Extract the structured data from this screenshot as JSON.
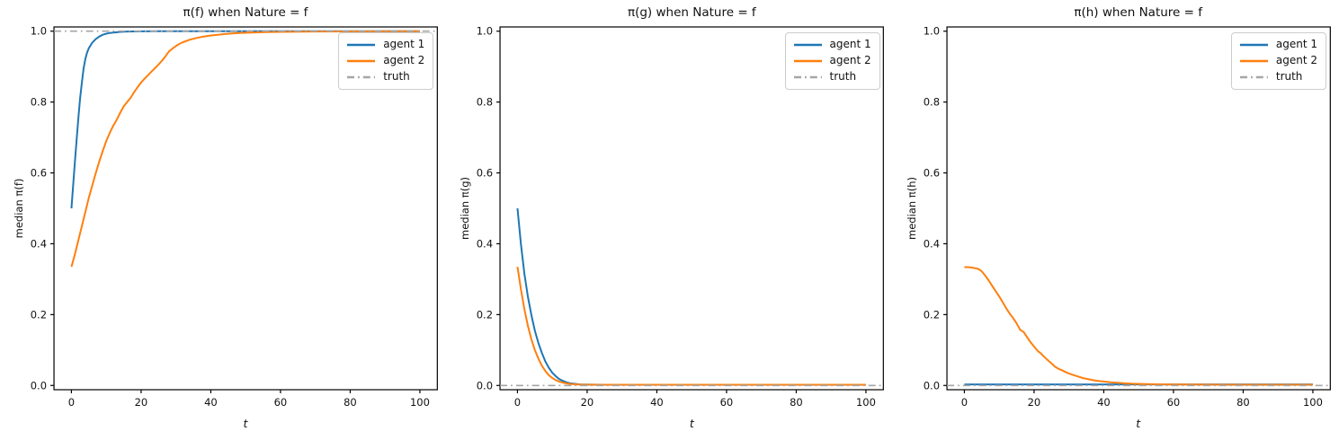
{
  "figure": {
    "background_color": "#ffffff",
    "text_color": "#111111",
    "axis_color": "#000000"
  },
  "chart_data": [
    {
      "type": "line",
      "title": "π(f) when Nature = f",
      "xlabel": "t",
      "ylabel": "median π(f)",
      "xlim": [
        -5,
        105
      ],
      "ylim": [
        -0.012,
        1.012
      ],
      "xticks": [
        "0",
        "20",
        "40",
        "60",
        "80",
        "100"
      ],
      "yticks": [
        "0.0",
        "0.2",
        "0.4",
        "0.6",
        "0.8",
        "1.0"
      ],
      "grid": false,
      "legend_position": "upper right",
      "legend_entries": [
        "agent 1",
        "agent 2",
        "truth"
      ],
      "series": [
        {
          "name": "agent 1",
          "color": "#1f77b4",
          "style": "solid",
          "width": 2,
          "points": [
            [
              0,
              0.5
            ],
            [
              0.5,
              0.565
            ],
            [
              1,
              0.63
            ],
            [
              1.5,
              0.695
            ],
            [
              2,
              0.755
            ],
            [
              2.5,
              0.81
            ],
            [
              3,
              0.855
            ],
            [
              3.5,
              0.895
            ],
            [
              4,
              0.922
            ],
            [
              4.5,
              0.94
            ],
            [
              5,
              0.952
            ],
            [
              6,
              0.968
            ],
            [
              7,
              0.978
            ],
            [
              8,
              0.985
            ],
            [
              9,
              0.99
            ],
            [
              10,
              0.993
            ],
            [
              11,
              0.995
            ],
            [
              12,
              0.996
            ],
            [
              14,
              0.998
            ],
            [
              16,
              0.999
            ],
            [
              20,
              0.9995
            ],
            [
              25,
              1.0
            ],
            [
              100,
              1.0
            ]
          ]
        },
        {
          "name": "agent 2",
          "color": "#ff7f0e",
          "style": "solid",
          "width": 2,
          "points": [
            [
              0,
              0.335
            ],
            [
              1,
              0.37
            ],
            [
              2,
              0.41
            ],
            [
              3,
              0.45
            ],
            [
              4,
              0.49
            ],
            [
              5,
              0.53
            ],
            [
              6,
              0.565
            ],
            [
              7,
              0.6
            ],
            [
              8,
              0.632
            ],
            [
              9,
              0.662
            ],
            [
              10,
              0.69
            ],
            [
              11,
              0.713
            ],
            [
              12,
              0.733
            ],
            [
              13,
              0.75
            ],
            [
              14,
              0.77
            ],
            [
              15,
              0.788
            ],
            [
              16,
              0.8
            ],
            [
              17,
              0.812
            ],
            [
              18,
              0.828
            ],
            [
              19,
              0.842
            ],
            [
              20,
              0.855
            ],
            [
              21,
              0.866
            ],
            [
              22,
              0.876
            ],
            [
              23,
              0.886
            ],
            [
              24,
              0.896
            ],
            [
              25,
              0.906
            ],
            [
              26,
              0.917
            ],
            [
              27,
              0.929
            ],
            [
              28,
              0.943
            ],
            [
              29,
              0.951
            ],
            [
              30,
              0.958
            ],
            [
              31,
              0.964
            ],
            [
              32,
              0.969
            ],
            [
              34,
              0.976
            ],
            [
              36,
              0.981
            ],
            [
              38,
              0.985
            ],
            [
              40,
              0.988
            ],
            [
              42,
              0.99
            ],
            [
              44,
              0.992
            ],
            [
              46,
              0.9935
            ],
            [
              48,
              0.995
            ],
            [
              52,
              0.996
            ],
            [
              56,
              0.9975
            ],
            [
              60,
              0.998
            ],
            [
              70,
              0.999
            ],
            [
              80,
              0.9995
            ],
            [
              100,
              1.0
            ]
          ]
        },
        {
          "name": "truth",
          "color": "#a6a6a6",
          "style": "dashdot",
          "width": 1.6,
          "dash": "8 4 1.8 4",
          "points": [
            [
              -5,
              1
            ],
            [
              105,
              1
            ]
          ]
        }
      ]
    },
    {
      "type": "line",
      "title": "π(g) when Nature = f",
      "xlabel": "t",
      "ylabel": "median π(g)",
      "xlim": [
        -5,
        105
      ],
      "ylim": [
        -0.012,
        1.012
      ],
      "xticks": [
        "0",
        "20",
        "40",
        "60",
        "80",
        "100"
      ],
      "yticks": [
        "0.0",
        "0.2",
        "0.4",
        "0.6",
        "0.8",
        "1.0"
      ],
      "grid": false,
      "legend_position": "upper right",
      "legend_entries": [
        "agent 1",
        "agent 2",
        "truth"
      ],
      "series": [
        {
          "name": "agent 1",
          "color": "#1f77b4",
          "style": "solid",
          "width": 2,
          "points": [
            [
              0,
              0.5
            ],
            [
              1,
              0.4
            ],
            [
              2,
              0.315
            ],
            [
              3,
              0.25
            ],
            [
              4,
              0.198
            ],
            [
              5,
              0.155
            ],
            [
              6,
              0.12
            ],
            [
              7,
              0.092
            ],
            [
              8,
              0.068
            ],
            [
              9,
              0.05
            ],
            [
              10,
              0.036
            ],
            [
              11,
              0.026
            ],
            [
              12,
              0.018
            ],
            [
              13,
              0.013
            ],
            [
              14,
              0.009
            ],
            [
              15,
              0.0065
            ],
            [
              16,
              0.005
            ],
            [
              18,
              0.003
            ],
            [
              20,
              0.0025
            ],
            [
              25,
              0.002
            ],
            [
              100,
              0.002
            ]
          ]
        },
        {
          "name": "agent 2",
          "color": "#ff7f0e",
          "style": "solid",
          "width": 2,
          "points": [
            [
              0,
              0.335
            ],
            [
              1,
              0.272
            ],
            [
              2,
              0.215
            ],
            [
              3,
              0.168
            ],
            [
              4,
              0.13
            ],
            [
              5,
              0.1
            ],
            [
              6,
              0.076
            ],
            [
              7,
              0.056
            ],
            [
              8,
              0.041
            ],
            [
              9,
              0.029
            ],
            [
              10,
              0.021
            ],
            [
              11,
              0.015
            ],
            [
              12,
              0.011
            ],
            [
              13,
              0.008
            ],
            [
              14,
              0.006
            ],
            [
              15,
              0.0045
            ],
            [
              16,
              0.0035
            ],
            [
              18,
              0.0025
            ],
            [
              20,
              0.002
            ],
            [
              100,
              0.002
            ]
          ]
        },
        {
          "name": "truth",
          "color": "#a6a6a6",
          "style": "dashdot",
          "width": 1.6,
          "dash": "8 4 1.8 4",
          "points": [
            [
              -5,
              0
            ],
            [
              105,
              0
            ]
          ]
        }
      ]
    },
    {
      "type": "line",
      "title": "π(h) when Nature = f",
      "xlabel": "t",
      "ylabel": "median π(h)",
      "xlim": [
        -5,
        105
      ],
      "ylim": [
        -0.012,
        1.012
      ],
      "xticks": [
        "0",
        "20",
        "40",
        "60",
        "80",
        "100"
      ],
      "yticks": [
        "0.0",
        "0.2",
        "0.4",
        "0.6",
        "0.8",
        "1.0"
      ],
      "grid": false,
      "legend_position": "upper right",
      "legend_entries": [
        "agent 1",
        "agent 2",
        "truth"
      ],
      "series": [
        {
          "name": "agent 1",
          "color": "#1f77b4",
          "style": "solid",
          "width": 2,
          "points": [
            [
              0,
              0.003
            ],
            [
              100,
              0.003
            ]
          ]
        },
        {
          "name": "agent 2",
          "color": "#ff7f0e",
          "style": "solid",
          "width": 2,
          "points": [
            [
              0,
              0.334
            ],
            [
              1,
              0.334
            ],
            [
              2,
              0.333
            ],
            [
              3,
              0.331
            ],
            [
              4,
              0.329
            ],
            [
              5,
              0.322
            ],
            [
              6,
              0.31
            ],
            [
              7,
              0.296
            ],
            [
              8,
              0.281
            ],
            [
              9,
              0.266
            ],
            [
              10,
              0.251
            ],
            [
              11,
              0.235
            ],
            [
              12,
              0.218
            ],
            [
              13,
              0.203
            ],
            [
              14,
              0.19
            ],
            [
              15,
              0.175
            ],
            [
              16,
              0.157
            ],
            [
              17,
              0.151
            ],
            [
              18,
              0.136
            ],
            [
              19,
              0.122
            ],
            [
              20,
              0.11
            ],
            [
              21,
              0.098
            ],
            [
              22,
              0.09
            ],
            [
              23,
              0.08
            ],
            [
              24,
              0.071
            ],
            [
              25,
              0.062
            ],
            [
              26,
              0.053
            ],
            [
              27,
              0.047
            ],
            [
              28,
              0.043
            ],
            [
              29,
              0.038
            ],
            [
              30,
              0.034
            ],
            [
              32,
              0.027
            ],
            [
              34,
              0.021
            ],
            [
              36,
              0.017
            ],
            [
              38,
              0.013
            ],
            [
              40,
              0.011
            ],
            [
              42,
              0.009
            ],
            [
              44,
              0.0075
            ],
            [
              46,
              0.006
            ],
            [
              48,
              0.005
            ],
            [
              50,
              0.0045
            ],
            [
              54,
              0.0035
            ],
            [
              58,
              0.003
            ],
            [
              65,
              0.0025
            ],
            [
              75,
              0.002
            ],
            [
              100,
              0.002
            ]
          ]
        },
        {
          "name": "truth",
          "color": "#a6a6a6",
          "style": "dashdot",
          "width": 1.6,
          "dash": "8 4 1.8 4",
          "points": [
            [
              -5,
              0
            ],
            [
              105,
              0
            ]
          ]
        }
      ]
    }
  ]
}
